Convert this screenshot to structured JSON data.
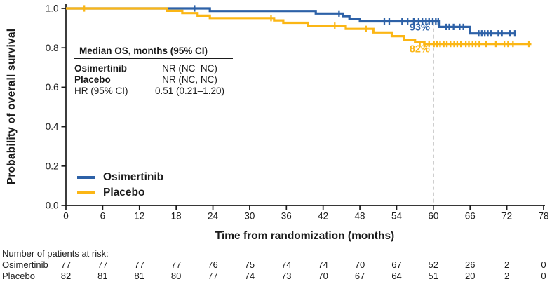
{
  "chart_data": {
    "type": "line",
    "subtype": "kaplan-meier-step",
    "title": "",
    "xlabel": "Time from randomization (months)",
    "ylabel": "Probability of overall survival",
    "xlim": [
      0,
      78
    ],
    "ylim": [
      0,
      1
    ],
    "grid": false,
    "legend_position": "lower-left",
    "axis_color": "#1b1b1b",
    "x_ticks": [
      0,
      6,
      12,
      18,
      24,
      30,
      36,
      42,
      48,
      54,
      60,
      66,
      72,
      78
    ],
    "y_ticks": [
      {
        "value": 0.0,
        "label": "0.0"
      },
      {
        "value": 0.2,
        "label": "0.2"
      },
      {
        "value": 0.4,
        "label": "0.4"
      },
      {
        "value": 0.6,
        "label": "0.6"
      },
      {
        "value": 0.8,
        "label": "0.8"
      },
      {
        "value": 1.0,
        "label": "1.0"
      }
    ],
    "series": [
      {
        "name": "Osimertinib",
        "color": "#2D61A7",
        "steps": [
          [
            0,
            1.0
          ],
          [
            23.5,
            0.987
          ],
          [
            40.8,
            0.974
          ],
          [
            45.2,
            0.961
          ],
          [
            46.3,
            0.948
          ],
          [
            48,
            0.934
          ],
          [
            61,
            0.906
          ],
          [
            66,
            0.873
          ]
        ],
        "end": 73.5,
        "censors": [
          [
            21,
            1.0
          ],
          [
            44.6,
            0.974
          ],
          [
            52,
            0.934
          ],
          [
            52.8,
            0.934
          ],
          [
            54.9,
            0.934
          ],
          [
            55.8,
            0.934
          ],
          [
            56.8,
            0.934
          ],
          [
            57.6,
            0.934
          ],
          [
            58.2,
            0.934
          ],
          [
            58.8,
            0.934
          ],
          [
            59.3,
            0.934
          ],
          [
            59.9,
            0.934
          ],
          [
            60.4,
            0.934
          ],
          [
            60.8,
            0.934
          ],
          [
            62.1,
            0.906
          ],
          [
            62.6,
            0.906
          ],
          [
            63.3,
            0.906
          ],
          [
            64.3,
            0.906
          ],
          [
            64.9,
            0.906
          ],
          [
            67.4,
            0.873
          ],
          [
            67.9,
            0.873
          ],
          [
            68.4,
            0.873
          ],
          [
            68.9,
            0.873
          ],
          [
            69.4,
            0.873
          ],
          [
            70.6,
            0.873
          ],
          [
            71.2,
            0.873
          ],
          [
            72.5,
            0.873
          ],
          [
            73.3,
            0.873
          ]
        ]
      },
      {
        "name": "Placebo",
        "color": "#FBB615",
        "steps": [
          [
            0,
            1.0
          ],
          [
            16.5,
            0.988
          ],
          [
            19,
            0.976
          ],
          [
            21.5,
            0.963
          ],
          [
            23.5,
            0.951
          ],
          [
            34,
            0.939
          ],
          [
            35.5,
            0.927
          ],
          [
            39.5,
            0.912
          ],
          [
            45.7,
            0.896
          ],
          [
            50.2,
            0.878
          ],
          [
            53.2,
            0.859
          ],
          [
            55.2,
            0.841
          ],
          [
            57,
            0.829
          ],
          [
            58.5,
            0.82
          ]
        ],
        "end": 76,
        "censors": [
          [
            3,
            1.0
          ],
          [
            33.5,
            0.951
          ],
          [
            43.9,
            0.912
          ],
          [
            49,
            0.896
          ],
          [
            57.8,
            0.82
          ],
          [
            58.6,
            0.82
          ],
          [
            59.3,
            0.82
          ],
          [
            60.1,
            0.82
          ],
          [
            60.6,
            0.82
          ],
          [
            61.1,
            0.82
          ],
          [
            61.7,
            0.82
          ],
          [
            62.2,
            0.82
          ],
          [
            62.8,
            0.82
          ],
          [
            63.4,
            0.82
          ],
          [
            63.9,
            0.82
          ],
          [
            64.5,
            0.82
          ],
          [
            65.3,
            0.82
          ],
          [
            65.8,
            0.82
          ],
          [
            66.4,
            0.82
          ],
          [
            66.9,
            0.82
          ],
          [
            67.5,
            0.82
          ],
          [
            68.6,
            0.82
          ],
          [
            70.2,
            0.82
          ],
          [
            71.6,
            0.82
          ],
          [
            72.2,
            0.82
          ],
          [
            73.0,
            0.82
          ],
          [
            75.6,
            0.82
          ]
        ]
      }
    ],
    "reference_line": {
      "month": 60,
      "from": 0.93,
      "to": 0,
      "color": "#B3B3B3"
    },
    "rate_labels": [
      {
        "text": "93%",
        "month": 60,
        "value": 0.905,
        "color": "#2D61A7"
      },
      {
        "text": "82%",
        "month": 60,
        "value": 0.795,
        "color": "#FBB615"
      }
    ],
    "annotation_box": {
      "header": "Median OS, months (95% CI)",
      "rows": [
        {
          "label": "Osimertinib",
          "value": "NR (NC–NC)",
          "bold": true
        },
        {
          "label": "Placebo",
          "value": "NR (NC, NC)",
          "bold": true
        },
        {
          "label": "HR (95% CI)",
          "value": "0.51 (0.21–1.20)",
          "bold": false
        }
      ]
    },
    "risk_table": {
      "title": "Number of patients at risk:",
      "rows": [
        {
          "name": "Osimertinib",
          "counts": [
            77,
            77,
            77,
            77,
            76,
            75,
            74,
            74,
            70,
            67,
            52,
            26,
            2,
            0
          ]
        },
        {
          "name": "Placebo",
          "counts": [
            82,
            81,
            81,
            80,
            77,
            74,
            73,
            70,
            67,
            64,
            51,
            20,
            2,
            0
          ]
        }
      ]
    }
  }
}
